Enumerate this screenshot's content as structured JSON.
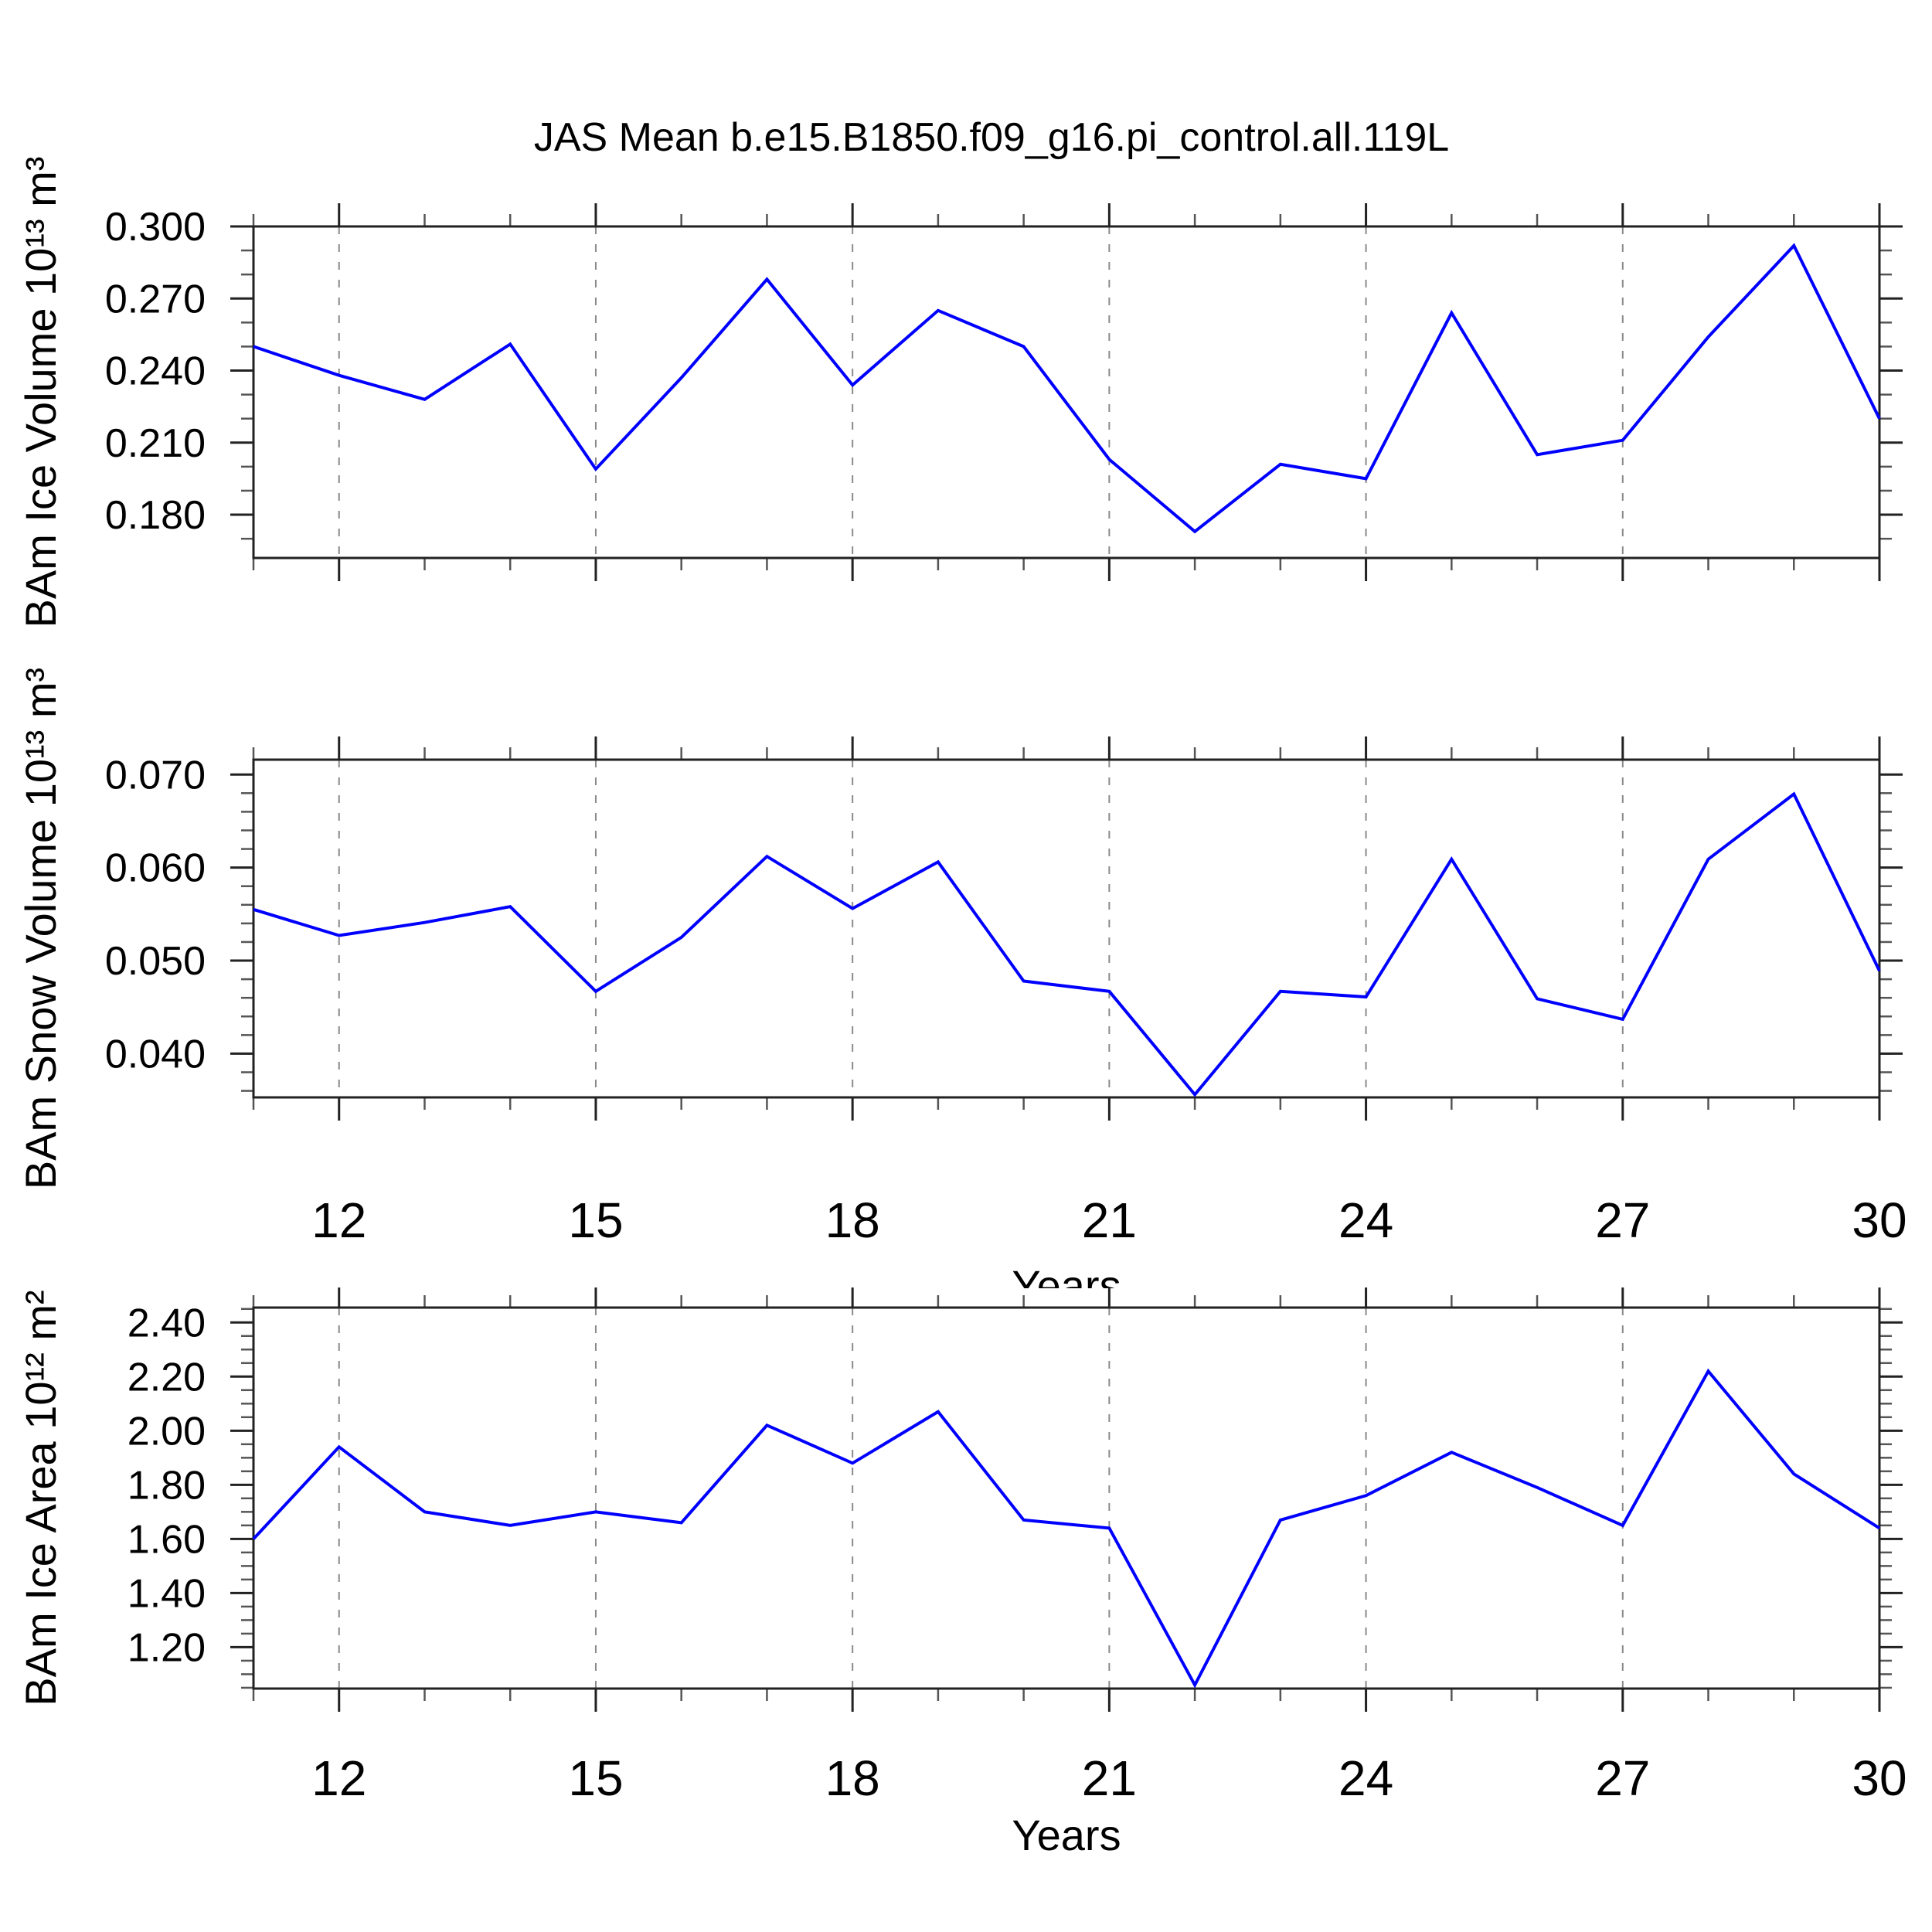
{
  "title": "JAS Mean b.e15.B1850.f09_g16.pi_control.all.119L",
  "background_color": "#ffffff",
  "frame_color": "#222222",
  "grid_color": "#8a8a8a",
  "accent_color": "#0000ff",
  "chart_data": [
    {
      "type": "line",
      "name": "ice-volume",
      "ylabel": "BAm Ice Volume 10¹³ m³",
      "xlabel": "Years",
      "x": [
        11,
        12,
        13,
        14,
        15,
        16,
        17,
        18,
        19,
        20,
        21,
        22,
        23,
        24,
        25,
        26,
        27,
        28,
        29,
        30
      ],
      "values": [
        0.25,
        0.238,
        0.228,
        0.251,
        0.199,
        0.237,
        0.278,
        0.234,
        0.265,
        0.25,
        0.203,
        0.173,
        0.201,
        0.195,
        0.264,
        0.205,
        0.211,
        0.254,
        0.292,
        0.22
      ],
      "xlim": [
        11,
        30
      ],
      "ylim": [
        0.162,
        0.3
      ],
      "xticks": [
        12,
        15,
        18,
        21,
        24,
        27,
        30
      ],
      "x_minor_step": 1,
      "grid_x": [
        12,
        15,
        18,
        21,
        24,
        27
      ],
      "yticks": [
        {
          "v": 0.3,
          "label": "0.300"
        },
        {
          "v": 0.27,
          "label": "0.270"
        },
        {
          "v": 0.24,
          "label": "0.240"
        },
        {
          "v": 0.21,
          "label": "0.210"
        },
        {
          "v": 0.18,
          "label": "0.180"
        }
      ],
      "y_minor_step": 0.01,
      "line_color": "#0000ff",
      "line_width": 4,
      "grid": "vertical-dashed",
      "legend": "none"
    },
    {
      "type": "line",
      "name": "snow-volume",
      "ylabel": "BAm Snow Volume 10¹³ m³",
      "xlabel": "Years",
      "x": [
        11,
        12,
        13,
        14,
        15,
        16,
        17,
        18,
        19,
        20,
        21,
        22,
        23,
        24,
        25,
        26,
        27,
        28,
        29,
        30
      ],
      "values": [
        0.0555,
        0.0527,
        0.0541,
        0.0558,
        0.0467,
        0.0525,
        0.0612,
        0.0556,
        0.0606,
        0.0478,
        0.0467,
        0.0356,
        0.0467,
        0.0461,
        0.0609,
        0.0459,
        0.0437,
        0.0609,
        0.0679,
        0.0489
      ],
      "xlim": [
        11,
        30
      ],
      "ylim": [
        0.0353,
        0.0716
      ],
      "xticks": [
        12,
        15,
        18,
        21,
        24,
        27,
        30
      ],
      "x_minor_step": 1,
      "grid_x": [
        12,
        15,
        18,
        21,
        24,
        27
      ],
      "yticks": [
        {
          "v": 0.07,
          "label": "0.070"
        },
        {
          "v": 0.06,
          "label": "0.060"
        },
        {
          "v": 0.05,
          "label": "0.050"
        },
        {
          "v": 0.04,
          "label": "0.040"
        }
      ],
      "y_minor_step": 0.002,
      "line_color": "#0000ff",
      "line_width": 4,
      "grid": "vertical-dashed",
      "legend": "none"
    },
    {
      "type": "line",
      "name": "ice-area",
      "ylabel": "BAm Ice Area 10¹² m²",
      "xlabel": "Years",
      "x": [
        11,
        12,
        13,
        14,
        15,
        16,
        17,
        18,
        19,
        20,
        21,
        22,
        23,
        24,
        25,
        26,
        27,
        28,
        29,
        30
      ],
      "values": [
        1.6,
        1.94,
        1.7,
        1.65,
        1.7,
        1.66,
        2.02,
        1.88,
        2.07,
        1.67,
        1.64,
        1.06,
        1.67,
        1.76,
        1.92,
        1.79,
        1.65,
        2.22,
        1.84,
        1.64
      ],
      "xlim": [
        11,
        30
      ],
      "ylim": [
        1.047,
        2.455
      ],
      "xticks": [
        12,
        15,
        18,
        21,
        24,
        27,
        30
      ],
      "x_minor_step": 1,
      "grid_x": [
        12,
        15,
        18,
        21,
        24,
        27
      ],
      "yticks": [
        {
          "v": 2.4,
          "label": "2.40"
        },
        {
          "v": 2.2,
          "label": "2.20"
        },
        {
          "v": 2.0,
          "label": "2.00"
        },
        {
          "v": 1.8,
          "label": "1.80"
        },
        {
          "v": 1.6,
          "label": "1.60"
        },
        {
          "v": 1.4,
          "label": "1.40"
        },
        {
          "v": 1.2,
          "label": "1.20"
        }
      ],
      "y_minor_step": 0.05,
      "line_color": "#0000ff",
      "line_width": 4,
      "grid": "vertical-dashed",
      "legend": "none"
    }
  ]
}
